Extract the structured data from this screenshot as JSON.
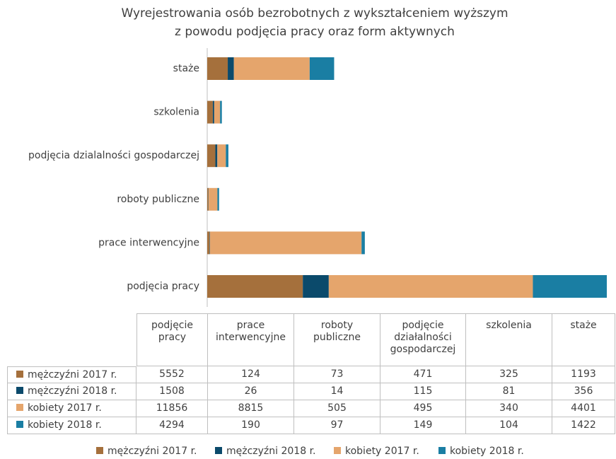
{
  "chart_data": {
    "type": "stacked_barh",
    "title": [
      "Wyrejestrowania osób bezrobotnych z wykształceniem wyższym",
      "z powodu podjęcia pracy oraz form aktywnych"
    ],
    "categories": [
      "podjęcia pracy",
      "prace interwencyjne",
      "roboty publiczne",
      "podjęcia dzialalności gospodarczej",
      "szkolenia",
      "staże"
    ],
    "table_headers": [
      "podjęcie pracy",
      "prace interwencyjne",
      "roboty publiczne",
      "podjęcie działalności gospodarczej",
      "szkolenia",
      "staże"
    ],
    "series": [
      {
        "name": "mężczyźni 2017 r.",
        "color": "#a5703c",
        "values": [
          5552,
          124,
          73,
          471,
          325,
          1193
        ]
      },
      {
        "name": "mężczyźni 2018 r.",
        "color": "#0b4a6b",
        "values": [
          1508,
          26,
          14,
          115,
          81,
          356
        ]
      },
      {
        "name": "kobiety 2017 r.",
        "color": "#e5a56c",
        "values": [
          11856,
          8815,
          505,
          495,
          340,
          4401
        ]
      },
      {
        "name": "kobiety 2018 r.",
        "color": "#1a7ea3",
        "values": [
          4294,
          190,
          97,
          149,
          104,
          1422
        ]
      }
    ]
  }
}
